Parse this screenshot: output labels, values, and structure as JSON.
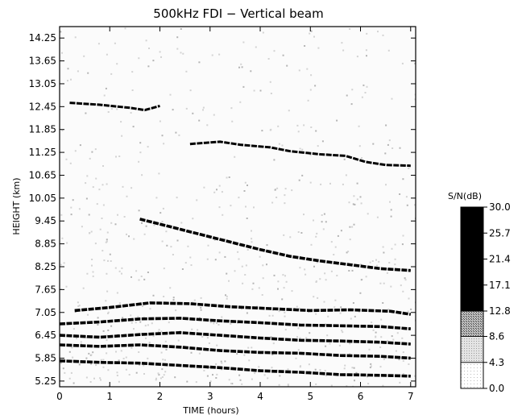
{
  "chart_data": {
    "type": "heatmap",
    "title": "500kHz FDI − Vertical beam",
    "xlabel": "TIME (hours)",
    "ylabel": "HEIGHT (km)",
    "xlim": [
      0,
      7.1
    ],
    "ylim": [
      5.1,
      14.55
    ],
    "x_ticks": [
      0,
      1,
      2,
      3,
      4,
      5,
      6,
      7
    ],
    "x_tick_labels": [
      "0",
      "1",
      "2",
      "3",
      "4",
      "5",
      "6",
      "7"
    ],
    "y_ticks": [
      5.25,
      5.85,
      6.45,
      7.05,
      7.65,
      8.25,
      8.85,
      9.45,
      10.05,
      10.65,
      11.25,
      11.85,
      12.45,
      13.05,
      13.65,
      14.25
    ],
    "y_tick_labels": [
      "5.25",
      "5.85",
      "6.45",
      "7.05",
      "7.65",
      "8.25",
      "8.85",
      "9.45",
      "10.05",
      "10.65",
      "11.25",
      "11.85",
      "12.45",
      "13.05",
      "13.65",
      "14.25"
    ],
    "colorbar": {
      "label": "S/N(dB)",
      "levels": [
        0.0,
        4.3,
        8.6,
        12.8,
        17.1,
        21.4,
        25.7,
        30.0
      ],
      "level_labels": [
        "0.0",
        "4.3",
        "8.6",
        "12.8",
        "17.1",
        "21.4",
        "25.7",
        "30.0"
      ],
      "colors": [
        "#f3f3f3",
        "#d6d6d6",
        "#9c9c9c",
        "#000000",
        "#000000",
        "#000000",
        "#000000"
      ]
    },
    "layers": [
      {
        "points": [
          [
            0.2,
            12.55
          ],
          [
            0.8,
            12.5
          ],
          [
            1.4,
            12.42
          ],
          [
            1.7,
            12.36
          ],
          [
            2.0,
            12.47
          ]
        ],
        "snr": 21
      },
      {
        "points": [
          [
            2.6,
            11.47
          ],
          [
            3.2,
            11.53
          ],
          [
            3.6,
            11.45
          ],
          [
            4.2,
            11.38
          ],
          [
            4.6,
            11.28
          ],
          [
            5.2,
            11.2
          ],
          [
            5.7,
            11.16
          ],
          [
            6.1,
            11.0
          ],
          [
            6.5,
            10.92
          ],
          [
            7.0,
            10.9
          ]
        ],
        "snr": 21
      },
      {
        "points": [
          [
            1.6,
            9.5
          ],
          [
            2.2,
            9.3
          ],
          [
            2.8,
            9.1
          ],
          [
            3.4,
            8.9
          ],
          [
            4.0,
            8.7
          ],
          [
            4.6,
            8.52
          ],
          [
            5.2,
            8.4
          ],
          [
            5.8,
            8.3
          ],
          [
            6.4,
            8.2
          ],
          [
            7.0,
            8.15
          ]
        ],
        "snr": 21
      },
      {
        "points": [
          [
            0.3,
            7.1
          ],
          [
            1.0,
            7.18
          ],
          [
            1.8,
            7.3
          ],
          [
            2.6,
            7.28
          ],
          [
            3.4,
            7.2
          ],
          [
            4.2,
            7.15
          ],
          [
            5.0,
            7.1
          ],
          [
            5.8,
            7.12
          ],
          [
            6.6,
            7.08
          ],
          [
            7.0,
            7.0
          ]
        ],
        "snr": 21
      },
      {
        "points": [
          [
            0.0,
            6.75
          ],
          [
            0.8,
            6.8
          ],
          [
            1.6,
            6.88
          ],
          [
            2.4,
            6.9
          ],
          [
            3.2,
            6.83
          ],
          [
            4.0,
            6.78
          ],
          [
            4.8,
            6.72
          ],
          [
            5.6,
            6.7
          ],
          [
            6.4,
            6.68
          ],
          [
            7.0,
            6.62
          ]
        ],
        "snr": 21
      },
      {
        "points": [
          [
            0.0,
            6.45
          ],
          [
            0.8,
            6.4
          ],
          [
            1.6,
            6.47
          ],
          [
            2.4,
            6.52
          ],
          [
            3.2,
            6.45
          ],
          [
            4.0,
            6.38
          ],
          [
            4.8,
            6.32
          ],
          [
            5.6,
            6.3
          ],
          [
            6.4,
            6.27
          ],
          [
            7.0,
            6.22
          ]
        ],
        "snr": 21
      },
      {
        "points": [
          [
            0.0,
            6.2
          ],
          [
            0.8,
            6.16
          ],
          [
            1.6,
            6.2
          ],
          [
            2.4,
            6.14
          ],
          [
            3.2,
            6.05
          ],
          [
            4.0,
            6.0
          ],
          [
            4.8,
            5.98
          ],
          [
            5.6,
            5.92
          ],
          [
            6.4,
            5.9
          ],
          [
            7.0,
            5.85
          ]
        ],
        "snr": 21
      },
      {
        "points": [
          [
            0.0,
            5.78
          ],
          [
            0.8,
            5.74
          ],
          [
            1.6,
            5.72
          ],
          [
            2.4,
            5.66
          ],
          [
            3.2,
            5.6
          ],
          [
            4.0,
            5.52
          ],
          [
            4.8,
            5.48
          ],
          [
            5.6,
            5.42
          ],
          [
            6.4,
            5.4
          ],
          [
            7.0,
            5.38
          ]
        ],
        "snr": 21
      }
    ],
    "grid": false,
    "legend": "colorbar at right"
  }
}
